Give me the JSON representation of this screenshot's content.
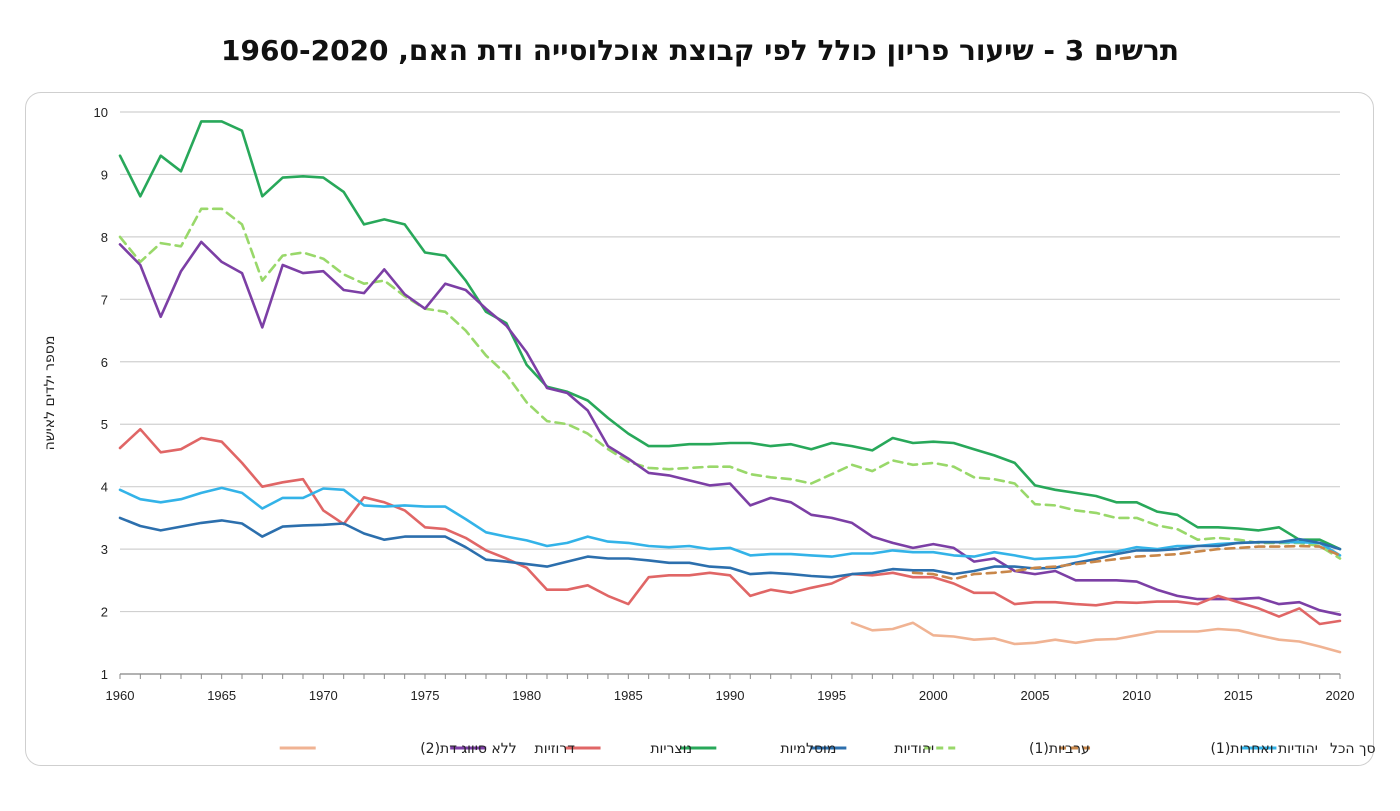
{
  "title": "תרשים 3 - שיעור פריון כולל לפי קבוצת אוכלוסייה ודת האם, 1960-2020",
  "chart_data": {
    "type": "line",
    "title": "תרשים 3 - שיעור פריון כולל לפי קבוצת אוכלוסייה ודת האם, 1960-2020",
    "xlabel": "",
    "ylabel": "מספר ילדים לאישה",
    "xlim": [
      1960,
      2020
    ],
    "ylim": [
      1,
      10
    ],
    "x_ticks": [
      1960,
      1965,
      1970,
      1975,
      1980,
      1985,
      1990,
      1995,
      2000,
      2005,
      2010,
      2015,
      2020
    ],
    "y_ticks": [
      1,
      2,
      3,
      4,
      5,
      6,
      7,
      8,
      9,
      10
    ],
    "grid": "horizontal",
    "legend_position": "bottom",
    "series": [
      {
        "name": "סך הכל",
        "color": "#33b3e8",
        "dash": false,
        "start": 1960,
        "values": [
          3.95,
          3.8,
          3.75,
          3.8,
          3.9,
          3.98,
          3.9,
          3.65,
          3.82,
          3.82,
          3.97,
          3.95,
          3.7,
          3.68,
          3.7,
          3.68,
          3.68,
          3.48,
          3.27,
          3.2,
          3.14,
          3.05,
          3.1,
          3.2,
          3.12,
          3.1,
          3.05,
          3.03,
          3.05,
          3.0,
          3.02,
          2.9,
          2.92,
          2.92,
          2.9,
          2.88,
          2.93,
          2.93,
          2.98,
          2.95,
          2.95,
          2.9,
          2.88,
          2.95,
          2.9,
          2.84,
          2.86,
          2.88,
          2.95,
          2.96,
          3.03,
          3.0,
          3.05,
          3.05,
          3.08,
          3.1,
          3.11,
          3.11,
          3.11,
          3.1,
          2.9
        ]
      },
      {
        "name": "יהודיות ואחרות(1)",
        "color": "#c8874a",
        "dash": true,
        "start": 1999,
        "values": [
          2.62,
          2.6,
          2.52,
          2.6,
          2.62,
          2.65,
          2.7,
          2.72,
          2.76,
          2.8,
          2.84,
          2.88,
          2.9,
          2.92,
          2.96,
          3.0,
          3.02,
          3.04,
          3.04,
          3.05,
          3.04,
          2.9
        ]
      },
      {
        "name": "ערביות(1)",
        "color": "#99d86a",
        "dash": true,
        "start": 1960,
        "values": [
          8.0,
          7.6,
          7.9,
          7.85,
          8.45,
          8.45,
          8.2,
          7.3,
          7.7,
          7.75,
          7.65,
          7.4,
          7.25,
          7.3,
          7.05,
          6.85,
          6.8,
          6.5,
          6.1,
          5.8,
          5.35,
          5.05,
          5.0,
          4.85,
          4.6,
          4.4,
          4.3,
          4.28,
          4.3,
          4.32,
          4.32,
          4.2,
          4.15,
          4.12,
          4.05,
          4.2,
          4.35,
          4.25,
          4.42,
          4.35,
          4.38,
          4.32,
          4.15,
          4.12,
          4.05,
          3.72,
          3.7,
          3.62,
          3.58,
          3.5,
          3.5,
          3.38,
          3.32,
          3.15,
          3.18,
          3.15,
          3.1,
          3.1,
          3.1,
          3.05,
          2.85
        ]
      },
      {
        "name": "יהודיות",
        "color": "#2c6fad",
        "dash": false,
        "start": 1960,
        "values": [
          3.5,
          3.37,
          3.3,
          3.36,
          3.42,
          3.46,
          3.41,
          3.2,
          3.36,
          3.38,
          3.39,
          3.41,
          3.25,
          3.15,
          3.2,
          3.2,
          3.2,
          3.03,
          2.83,
          2.8,
          2.76,
          2.72,
          2.8,
          2.88,
          2.85,
          2.85,
          2.82,
          2.78,
          2.78,
          2.72,
          2.7,
          2.6,
          2.62,
          2.6,
          2.57,
          2.55,
          2.6,
          2.62,
          2.68,
          2.66,
          2.66,
          2.6,
          2.65,
          2.72,
          2.72,
          2.69,
          2.7,
          2.78,
          2.84,
          2.92,
          2.98,
          2.98,
          3.0,
          3.05,
          3.05,
          3.1,
          3.11,
          3.11,
          3.16,
          3.1,
          3.0
        ]
      },
      {
        "name": "מוסלמיות",
        "color": "#28a85a",
        "dash": false,
        "start": 1960,
        "values": [
          9.3,
          8.65,
          9.3,
          9.05,
          9.85,
          9.85,
          9.7,
          8.65,
          8.95,
          8.97,
          8.95,
          8.72,
          8.2,
          8.28,
          8.2,
          7.75,
          7.7,
          7.3,
          6.8,
          6.62,
          5.95,
          5.6,
          5.52,
          5.38,
          5.1,
          4.85,
          4.65,
          4.65,
          4.68,
          4.68,
          4.7,
          4.7,
          4.65,
          4.68,
          4.6,
          4.7,
          4.65,
          4.58,
          4.78,
          4.7,
          4.72,
          4.7,
          4.6,
          4.5,
          4.38,
          4.02,
          3.95,
          3.9,
          3.85,
          3.75,
          3.75,
          3.6,
          3.55,
          3.35,
          3.35,
          3.33,
          3.3,
          3.35,
          3.15,
          3.15,
          3.0
        ]
      },
      {
        "name": "נוצריות",
        "color": "#e06666",
        "dash": false,
        "start": 1960,
        "values": [
          4.62,
          4.92,
          4.55,
          4.6,
          4.78,
          4.72,
          4.38,
          4.0,
          4.07,
          4.12,
          3.62,
          3.4,
          3.83,
          3.75,
          3.62,
          3.35,
          3.32,
          3.18,
          2.98,
          2.85,
          2.7,
          2.35,
          2.35,
          2.42,
          2.25,
          2.12,
          2.55,
          2.58,
          2.58,
          2.62,
          2.58,
          2.25,
          2.35,
          2.3,
          2.38,
          2.45,
          2.6,
          2.58,
          2.62,
          2.55,
          2.55,
          2.45,
          2.3,
          2.3,
          2.12,
          2.15,
          2.15,
          2.12,
          2.1,
          2.15,
          2.14,
          2.16,
          2.16,
          2.12,
          2.25,
          2.15,
          2.05,
          1.92,
          2.05,
          1.8,
          1.85
        ]
      },
      {
        "name": "דרוזיות",
        "color": "#7c3fa5",
        "dash": false,
        "start": 1960,
        "values": [
          7.88,
          7.55,
          6.72,
          7.45,
          7.92,
          7.6,
          7.42,
          6.55,
          7.55,
          7.42,
          7.45,
          7.15,
          7.1,
          7.48,
          7.08,
          6.85,
          7.25,
          7.15,
          6.85,
          6.58,
          6.15,
          5.58,
          5.5,
          5.22,
          4.65,
          4.45,
          4.22,
          4.18,
          4.1,
          4.02,
          4.05,
          3.7,
          3.82,
          3.75,
          3.55,
          3.5,
          3.42,
          3.2,
          3.1,
          3.02,
          3.08,
          3.02,
          2.8,
          2.85,
          2.65,
          2.6,
          2.65,
          2.5,
          2.5,
          2.5,
          2.48,
          2.35,
          2.25,
          2.2,
          2.2,
          2.2,
          2.22,
          2.12,
          2.15,
          2.02,
          1.95
        ]
      },
      {
        "name": "ללא סיווג דת(2)",
        "color": "#f0b393",
        "dash": false,
        "start": 1996,
        "values": [
          1.82,
          1.7,
          1.72,
          1.82,
          1.62,
          1.6,
          1.55,
          1.57,
          1.48,
          1.5,
          1.55,
          1.5,
          1.55,
          1.56,
          1.62,
          1.68,
          1.68,
          1.68,
          1.72,
          1.7,
          1.62,
          1.55,
          1.52,
          1.44,
          1.35
        ]
      }
    ],
    "legend_order": [
      "סך הכל",
      "יהודיות ואחרות(1)",
      "ערביות(1)",
      "יהודיות",
      "מוסלמיות",
      "נוצריות",
      "דרוזיות",
      "ללא סיווג דת(2)"
    ]
  }
}
